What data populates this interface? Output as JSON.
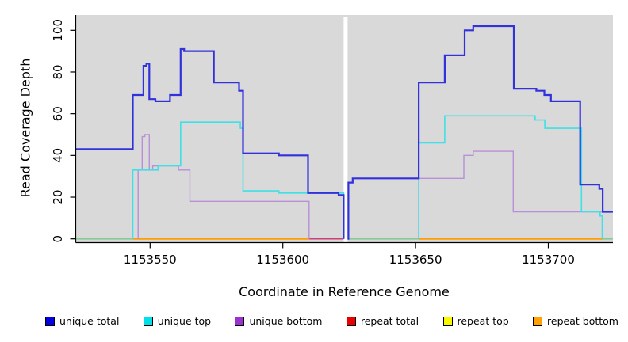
{
  "axes": {
    "xlabel": "Coordinate in Reference Genome",
    "ylabel": "Read Coverage Depth",
    "x_tick_labels": [
      "1153550",
      "1153600",
      "1153650",
      "1153700"
    ],
    "y_tick_labels": [
      "0",
      "20",
      "40",
      "60",
      "80",
      "100"
    ]
  },
  "legend": {
    "items": [
      {
        "label": "unique total",
        "color": "#0000e0"
      },
      {
        "label": "unique top",
        "color": "#00e0ea"
      },
      {
        "label": "unique bottom",
        "color": "#9933cc"
      },
      {
        "label": "repeat total",
        "color": "#e80000"
      },
      {
        "label": "repeat top",
        "color": "#f8f800"
      },
      {
        "label": "repeat bottom",
        "color": "#ffa200"
      }
    ]
  },
  "chart_data": {
    "type": "line",
    "title": "",
    "xlabel": "Coordinate in Reference Genome",
    "ylabel": "Read Coverage Depth",
    "xlim": [
      1153522,
      1153724
    ],
    "ylim": [
      0,
      102
    ],
    "x_ticks": [
      1153550,
      1153600,
      1153650,
      1153700
    ],
    "y_ticks": [
      0,
      20,
      40,
      60,
      80,
      100
    ],
    "grid": false,
    "legend_position": "bottom",
    "panel_background": "#d9d9d9",
    "gap_x": [
      1153622.9,
      1153624.4
    ],
    "series": [
      {
        "name": "unique bottom",
        "color": "#b88fd8",
        "width": 1.4,
        "segments": [
          {
            "points": [
              [
                1153545.5,
                0
              ],
              [
                1153545.5,
                33
              ],
              [
                1153547,
                49
              ],
              [
                1153548,
                50
              ],
              [
                1153549.7,
                33
              ],
              [
                1153551,
                35
              ],
              [
                1153560.7,
                33
              ],
              [
                1153565,
                18
              ],
              [
                1153609.9,
                0
              ]
            ],
            "end": 1153609.9
          },
          {
            "points": [
              [
                1153651.2,
                0
              ],
              [
                1153651.2,
                29
              ],
              [
                1153668.2,
                40
              ],
              [
                1153671.7,
                42
              ],
              [
                1153686.8,
                13
              ]
            ],
            "end": 1153724.3
          }
        ]
      },
      {
        "name": "unique top",
        "color": "#3fe0e6",
        "width": 1.6,
        "segments": [
          {
            "points": [
              [
                1153543.5,
                0
              ],
              [
                1153543.5,
                33
              ],
              [
                1153553,
                35
              ],
              [
                1153561.5,
                56
              ],
              [
                1153584,
                53
              ],
              [
                1153585,
                23
              ],
              [
                1153598.5,
                22
              ],
              [
                1153622.9,
                0
              ]
            ],
            "end": 1153622.9
          },
          {
            "points": [
              [
                1153651.2,
                0
              ],
              [
                1153651.2,
                46
              ],
              [
                1153661,
                59
              ],
              [
                1153695,
                57
              ],
              [
                1153698.7,
                53
              ],
              [
                1153712.5,
                13
              ],
              [
                1153719.5,
                11
              ],
              [
                1153720.3,
                0
              ]
            ],
            "end": 1153720.3
          }
        ]
      },
      {
        "name": "unique total",
        "color": "#3232dc",
        "width": 2.2,
        "segments": [
          {
            "points": [
              [
                1153522,
                43
              ],
              [
                1153543.5,
                69
              ],
              [
                1153547.5,
                83
              ],
              [
                1153548.6,
                84
              ],
              [
                1153549.7,
                67
              ],
              [
                1153552,
                66
              ],
              [
                1153557.5,
                69
              ],
              [
                1153561.5,
                91
              ],
              [
                1153562.8,
                90
              ],
              [
                1153574,
                75
              ],
              [
                1153583.5,
                71
              ],
              [
                1153585,
                41
              ],
              [
                1153598.5,
                40
              ],
              [
                1153609.5,
                22
              ],
              [
                1153621,
                21
              ],
              [
                1153622.9,
                0
              ]
            ],
            "end": 1153622.9
          },
          {
            "points": [
              [
                1153624.4,
                0
              ],
              [
                1153624.7,
                27
              ],
              [
                1153626.3,
                29
              ],
              [
                1153651.2,
                75
              ],
              [
                1153661,
                88
              ],
              [
                1153668.5,
                100
              ],
              [
                1153671.7,
                102
              ],
              [
                1153687,
                72
              ],
              [
                1153695.5,
                71
              ],
              [
                1153698.5,
                69
              ],
              [
                1153701,
                66
              ],
              [
                1153712,
                26
              ],
              [
                1153719.2,
                24
              ],
              [
                1153720.5,
                13
              ]
            ],
            "end": 1153724.3
          }
        ]
      },
      {
        "name": "repeat total",
        "color": "#e80000",
        "width": 1.5,
        "segments": []
      },
      {
        "name": "repeat top",
        "color": "#f8f800",
        "width": 1.5,
        "segments": []
      },
      {
        "name": "repeat bottom",
        "color": "#ff9e00",
        "width": 2,
        "segments": []
      }
    ],
    "baseline_segments": [
      {
        "color": "#86cb96",
        "width": 1.8,
        "from": 1153522,
        "to": 1153543.5
      },
      {
        "color": "#ff9e00",
        "width": 2,
        "from": 1153543.5,
        "to": 1153609.9
      },
      {
        "color": "#cc4077",
        "width": 1.6,
        "from": 1153609.9,
        "to": 1153622.9
      },
      {
        "color": "#86cb96",
        "width": 1.8,
        "from": 1153624.4,
        "to": 1153651.2
      },
      {
        "color": "#ff9e00",
        "width": 2,
        "from": 1153651.2,
        "to": 1153720.5
      },
      {
        "color": "#86cb96",
        "width": 1.8,
        "from": 1153720.5,
        "to": 1153724.3
      }
    ]
  }
}
